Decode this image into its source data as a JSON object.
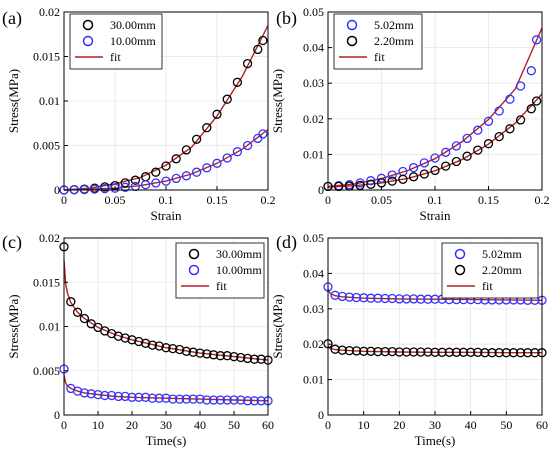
{
  "colors": {
    "black": "#000000",
    "blue": "#3333ff",
    "fit": "#b22222",
    "grid": "#e6e6e6",
    "legend_border": "#000000"
  },
  "chart_data": [
    {
      "type": "scatter",
      "panel_label": "(a)",
      "xlabel": "Strain",
      "ylabel": "Stress(MPa)",
      "xlim": [
        0,
        0.2
      ],
      "ylim": [
        0,
        0.02
      ],
      "xticks": [
        "0",
        "0.05",
        "0.1",
        "0.15",
        "0.2"
      ],
      "yticks": [
        "0",
        "0.005",
        "0.01",
        "0.015",
        "0.02"
      ],
      "xtick_values": [
        0,
        0.05,
        0.1,
        0.15,
        0.2
      ],
      "ytick_values": [
        0,
        0.005,
        0.01,
        0.015,
        0.02
      ],
      "grid": true,
      "legend_position": "top-left",
      "legend": [
        "30.00mm",
        "10.00mm",
        "fit"
      ],
      "series": [
        {
          "name": "30.00mm",
          "color": "black",
          "x": [
            0,
            0.01,
            0.02,
            0.03,
            0.04,
            0.05,
            0.06,
            0.07,
            0.08,
            0.09,
            0.1,
            0.11,
            0.12,
            0.13,
            0.14,
            0.15,
            0.16,
            0.17,
            0.18,
            0.19,
            0.195
          ],
          "y": [
            0,
            5e-05,
            0.0001,
            0.0002,
            0.00035,
            0.0005,
            0.0008,
            0.0011,
            0.0015,
            0.002,
            0.0027,
            0.0035,
            0.0045,
            0.0057,
            0.007,
            0.0085,
            0.0102,
            0.0121,
            0.0142,
            0.0158,
            0.0168
          ]
        },
        {
          "name": "10.00mm",
          "color": "blue",
          "x": [
            0,
            0.01,
            0.02,
            0.03,
            0.04,
            0.05,
            0.06,
            0.07,
            0.08,
            0.09,
            0.1,
            0.11,
            0.12,
            0.13,
            0.14,
            0.15,
            0.16,
            0.17,
            0.18,
            0.19,
            0.195
          ],
          "y": [
            0,
            2e-05,
            5e-05,
            0.0001,
            0.00015,
            0.0002,
            0.0003,
            0.0004,
            0.0006,
            0.0008,
            0.001,
            0.0013,
            0.0016,
            0.002,
            0.0025,
            0.003,
            0.0036,
            0.0043,
            0.005,
            0.0058,
            0.0063
          ]
        }
      ],
      "fits": [
        {
          "x": [
            0,
            0.025,
            0.05,
            0.075,
            0.1,
            0.125,
            0.15,
            0.175,
            0.2
          ],
          "y": [
            0,
            0.0002,
            0.0007,
            0.0014,
            0.0028,
            0.0048,
            0.0083,
            0.0128,
            0.0185
          ]
        },
        {
          "x": [
            0,
            0.025,
            0.05,
            0.075,
            0.1,
            0.125,
            0.15,
            0.175,
            0.2
          ],
          "y": [
            0,
            0.0001,
            0.0002,
            0.0005,
            0.001,
            0.0018,
            0.003,
            0.0046,
            0.0068
          ]
        }
      ]
    },
    {
      "type": "scatter",
      "panel_label": "(b)",
      "xlabel": "Strain",
      "ylabel": "Stress(MPa)",
      "xlim": [
        0,
        0.2
      ],
      "ylim": [
        0,
        0.05
      ],
      "xticks": [
        "0",
        "0.05",
        "0.1",
        "0.15",
        "0.2"
      ],
      "yticks": [
        "0",
        "0.01",
        "0.02",
        "0.03",
        "0.04",
        "0.05"
      ],
      "xtick_values": [
        0,
        0.05,
        0.1,
        0.15,
        0.2
      ],
      "ytick_values": [
        0,
        0.01,
        0.02,
        0.03,
        0.04,
        0.05
      ],
      "grid": true,
      "legend_position": "top-left",
      "legend": [
        "5.02mm",
        "2.20mm",
        "fit"
      ],
      "series": [
        {
          "name": "5.02mm",
          "color": "blue",
          "x": [
            0,
            0.01,
            0.02,
            0.03,
            0.04,
            0.05,
            0.06,
            0.07,
            0.08,
            0.09,
            0.1,
            0.11,
            0.12,
            0.13,
            0.14,
            0.15,
            0.16,
            0.17,
            0.18,
            0.19,
            0.195
          ],
          "y": [
            0.001,
            0.0012,
            0.0015,
            0.002,
            0.0026,
            0.0033,
            0.0042,
            0.0052,
            0.0063,
            0.0076,
            0.009,
            0.0106,
            0.0124,
            0.0145,
            0.0168,
            0.0193,
            0.0222,
            0.0255,
            0.0292,
            0.0335,
            0.0422
          ]
        },
        {
          "name": "2.20mm",
          "color": "black",
          "x": [
            0,
            0.01,
            0.02,
            0.03,
            0.04,
            0.05,
            0.06,
            0.07,
            0.08,
            0.09,
            0.1,
            0.11,
            0.12,
            0.13,
            0.14,
            0.15,
            0.16,
            0.17,
            0.18,
            0.19,
            0.195
          ],
          "y": [
            0.001,
            0.001,
            0.0011,
            0.0013,
            0.0016,
            0.002,
            0.0025,
            0.003,
            0.0037,
            0.0045,
            0.0055,
            0.0067,
            0.008,
            0.0095,
            0.0112,
            0.013,
            0.015,
            0.0172,
            0.0197,
            0.0228,
            0.025
          ]
        }
      ],
      "fits": [
        {
          "x": [
            0,
            0.025,
            0.05,
            0.075,
            0.1,
            0.125,
            0.15,
            0.175,
            0.2
          ],
          "y": [
            0.001,
            0.0017,
            0.0032,
            0.0055,
            0.0088,
            0.0135,
            0.0198,
            0.0284,
            0.0455
          ]
        },
        {
          "x": [
            0,
            0.025,
            0.05,
            0.075,
            0.1,
            0.125,
            0.15,
            0.175,
            0.2
          ],
          "y": [
            0.0008,
            0.0012,
            0.002,
            0.0033,
            0.0054,
            0.0085,
            0.0129,
            0.0188,
            0.027
          ]
        }
      ]
    },
    {
      "type": "scatter",
      "panel_label": "(c)",
      "xlabel": "Time(s)",
      "ylabel": "Stress(MPa)",
      "xlim": [
        0,
        60
      ],
      "ylim": [
        0,
        0.02
      ],
      "xticks": [
        "0",
        "10",
        "20",
        "30",
        "40",
        "50",
        "60"
      ],
      "yticks": [
        "0",
        "0.005",
        "0.01",
        "0.015",
        "0.02"
      ],
      "xtick_values": [
        0,
        10,
        20,
        30,
        40,
        50,
        60
      ],
      "ytick_values": [
        0,
        0.005,
        0.01,
        0.015,
        0.02
      ],
      "grid": true,
      "legend_position": "top-right",
      "legend": [
        "30.00mm",
        "10.00mm",
        "fit"
      ],
      "series": [
        {
          "name": "30.00mm",
          "color": "black",
          "x": [
            0,
            2,
            4,
            6,
            8,
            10,
            12,
            14,
            16,
            18,
            20,
            22,
            24,
            26,
            28,
            30,
            32,
            34,
            36,
            38,
            40,
            42,
            44,
            46,
            48,
            50,
            52,
            54,
            56,
            58,
            60
          ],
          "y": [
            0.019,
            0.0128,
            0.0116,
            0.0109,
            0.0103,
            0.0099,
            0.0095,
            0.0092,
            0.0089,
            0.0087,
            0.0085,
            0.0083,
            0.0081,
            0.0079,
            0.0078,
            0.0076,
            0.0075,
            0.0074,
            0.0072,
            0.0071,
            0.007,
            0.0069,
            0.0068,
            0.0067,
            0.0067,
            0.0066,
            0.0065,
            0.0064,
            0.0063,
            0.0063,
            0.0062
          ]
        },
        {
          "name": "10.00mm",
          "color": "blue",
          "x": [
            0,
            2,
            4,
            6,
            8,
            10,
            12,
            14,
            16,
            18,
            20,
            22,
            24,
            26,
            28,
            30,
            32,
            34,
            36,
            38,
            40,
            42,
            44,
            46,
            48,
            50,
            52,
            54,
            56,
            58,
            60
          ],
          "y": [
            0.0052,
            0.003,
            0.0027,
            0.0025,
            0.0024,
            0.0023,
            0.0022,
            0.0022,
            0.0021,
            0.0021,
            0.002,
            0.002,
            0.002,
            0.0019,
            0.0019,
            0.0019,
            0.0018,
            0.0018,
            0.0018,
            0.0018,
            0.0018,
            0.0017,
            0.0017,
            0.0017,
            0.0017,
            0.0017,
            0.0017,
            0.0016,
            0.0016,
            0.0016,
            0.0016
          ]
        }
      ],
      "fits": [
        {
          "x": [
            0,
            0.5,
            1,
            2,
            4,
            6,
            10,
            15,
            20,
            30,
            40,
            50,
            60
          ],
          "y": [
            0.0175,
            0.0148,
            0.0138,
            0.0127,
            0.0116,
            0.0109,
            0.0099,
            0.0091,
            0.0085,
            0.0076,
            0.007,
            0.0066,
            0.0062
          ]
        },
        {
          "x": [
            0,
            0.5,
            1,
            2,
            4,
            6,
            10,
            15,
            20,
            30,
            40,
            50,
            60
          ],
          "y": [
            0.0045,
            0.0036,
            0.0033,
            0.003,
            0.0027,
            0.0025,
            0.0023,
            0.0021,
            0.002,
            0.0019,
            0.0018,
            0.0017,
            0.0016
          ]
        }
      ]
    },
    {
      "type": "scatter",
      "panel_label": "(d)",
      "xlabel": "Time(s)",
      "ylabel": "Stress(MPa)",
      "xlim": [
        0,
        60
      ],
      "ylim": [
        0,
        0.05
      ],
      "xticks": [
        "0",
        "10",
        "20",
        "30",
        "40",
        "50",
        "60"
      ],
      "yticks": [
        "0",
        "0.01",
        "0.02",
        "0.03",
        "0.04",
        "0.05"
      ],
      "xtick_values": [
        0,
        10,
        20,
        30,
        40,
        50,
        60
      ],
      "ytick_values": [
        0,
        0.01,
        0.02,
        0.03,
        0.04,
        0.05
      ],
      "grid": true,
      "legend_position": "top-right",
      "legend": [
        "5.02mm",
        "2.20mm",
        "fit"
      ],
      "series": [
        {
          "name": "5.02mm",
          "color": "blue",
          "x": [
            0,
            2,
            4,
            6,
            8,
            10,
            12,
            14,
            16,
            18,
            20,
            22,
            24,
            26,
            28,
            30,
            32,
            34,
            36,
            38,
            40,
            42,
            44,
            46,
            48,
            50,
            52,
            54,
            56,
            58,
            60
          ],
          "y": [
            0.0362,
            0.0338,
            0.0335,
            0.0333,
            0.0332,
            0.0331,
            0.033,
            0.033,
            0.0329,
            0.0329,
            0.0328,
            0.0328,
            0.0328,
            0.0327,
            0.0327,
            0.0327,
            0.0327,
            0.0326,
            0.0326,
            0.0326,
            0.0326,
            0.0326,
            0.0325,
            0.0325,
            0.0325,
            0.0325,
            0.0325,
            0.0325,
            0.0324,
            0.0324,
            0.0324
          ]
        },
        {
          "name": "2.20mm",
          "color": "black",
          "x": [
            0,
            2,
            4,
            6,
            8,
            10,
            12,
            14,
            16,
            18,
            20,
            22,
            24,
            26,
            28,
            30,
            32,
            34,
            36,
            38,
            40,
            42,
            44,
            46,
            48,
            50,
            52,
            54,
            56,
            58,
            60
          ],
          "y": [
            0.0201,
            0.0186,
            0.0183,
            0.0182,
            0.0181,
            0.018,
            0.018,
            0.0179,
            0.0179,
            0.0179,
            0.0178,
            0.0178,
            0.0178,
            0.0178,
            0.0178,
            0.0177,
            0.0177,
            0.0177,
            0.0177,
            0.0177,
            0.0177,
            0.0177,
            0.0176,
            0.0176,
            0.0176,
            0.0176,
            0.0176,
            0.0176,
            0.0176,
            0.0176,
            0.0176
          ]
        }
      ],
      "fits": [
        {
          "x": [
            0,
            0.5,
            1,
            2,
            4,
            10,
            20,
            30,
            40,
            50,
            60
          ],
          "y": [
            0.0355,
            0.0345,
            0.0341,
            0.0337,
            0.0334,
            0.033,
            0.0328,
            0.0327,
            0.0326,
            0.0325,
            0.0324
          ]
        },
        {
          "x": [
            0,
            0.5,
            1,
            2,
            4,
            10,
            20,
            30,
            40,
            50,
            60
          ],
          "y": [
            0.0195,
            0.0189,
            0.0187,
            0.0185,
            0.0183,
            0.018,
            0.0178,
            0.0177,
            0.0177,
            0.0176,
            0.0176
          ]
        }
      ]
    }
  ]
}
